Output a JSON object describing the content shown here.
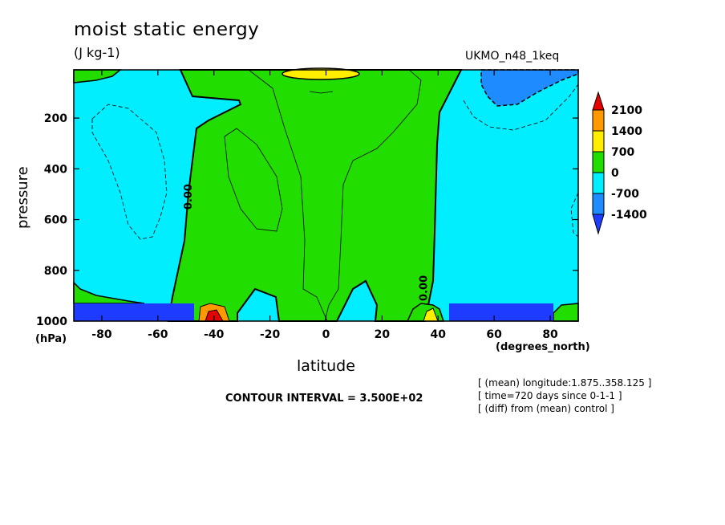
{
  "chart_data": {
    "type": "heatmap",
    "title": "moist static energy",
    "units": "(J kg-1)",
    "model": "UKMO_n48_1keq",
    "xlabel": "latitude",
    "xunit": "(degrees_north)",
    "ylabel": "pressure",
    "yunit": "(hPa)",
    "x_ticks": [
      "-80",
      "-60",
      "-40",
      "-20",
      "0",
      "20",
      "40",
      "60",
      "80"
    ],
    "x_tick_values": [
      -80,
      -60,
      -40,
      -20,
      0,
      20,
      40,
      60,
      80
    ],
    "y_ticks": [
      "200",
      "400",
      "600",
      "800",
      "1000"
    ],
    "y_tick_values": [
      200,
      400,
      600,
      800,
      1000
    ],
    "xlim": [
      -90,
      90
    ],
    "ylim": [
      1000,
      10
    ],
    "contour_labels": [
      {
        "text": "0.00",
        "lat": -48,
        "p": 510
      },
      {
        "text": "0.00",
        "lat": 36,
        "p": 870
      }
    ],
    "contour_interval": "CONTOUR INTERVAL = 3.500E+02",
    "legend": {
      "labels": [
        "2100",
        "1400",
        "700",
        "0",
        "-700",
        "-1400"
      ],
      "colors": [
        "#e60000",
        "#ff9900",
        "#ffee00",
        "#22dd00",
        "#00eeff",
        "#1e8cff",
        "#1e3cff"
      ]
    },
    "notes": [
      "[ (mean) longitude:1.875..358.125 ]",
      "[ time=720 days since 0-1-1 ]",
      "[ (diff) from (mean) control ]"
    ],
    "colors": {
      "negative_small": "#00eeff",
      "positive_small": "#22dd00",
      "positive_mid": "#ffee00",
      "negative_mid": "#1e8cff"
    }
  }
}
